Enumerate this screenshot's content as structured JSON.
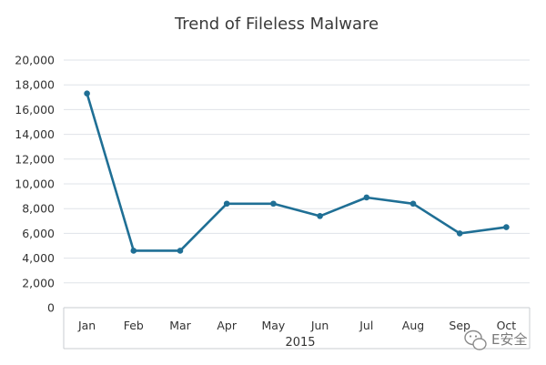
{
  "chart_data": {
    "type": "line",
    "title": "Trend of Fileless Malware",
    "xlabel": "2015",
    "ylabel": "",
    "categories": [
      "Jan",
      "Feb",
      "Mar",
      "Apr",
      "May",
      "Jun",
      "Jul",
      "Aug",
      "Sep",
      "Oct"
    ],
    "series": [
      {
        "values": [
          17300,
          4600,
          4600,
          8400,
          8400,
          7400,
          8900,
          8400,
          6000,
          6500
        ]
      }
    ],
    "ylim": [
      0,
      20000
    ],
    "yticks": [
      0,
      2000,
      4000,
      6000,
      8000,
      10000,
      12000,
      14000,
      16000,
      18000,
      20000
    ],
    "ytick_labels": [
      "0",
      "2,000",
      "4,000",
      "6,000",
      "8,000",
      "10,000",
      "12,000",
      "14,000",
      "16,000",
      "18,000",
      "20,000"
    ],
    "grid": "horizontal",
    "legend": "none",
    "colors": {
      "line": "#1f6f95",
      "grid": "#dfe3e8",
      "axis": "#c8ccd2"
    }
  },
  "watermark": {
    "text": "E安全",
    "icon": "wechat-icon"
  }
}
